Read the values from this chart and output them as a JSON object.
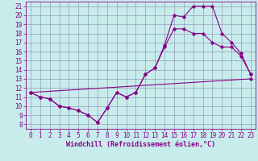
{
  "background_color": "#c8ecec",
  "line_color": "#880088",
  "marker": "D",
  "marker_size": 1.8,
  "linewidth": 0.8,
  "xlabel": "Windchill (Refroidissement éolien,°C)",
  "xlabel_fontsize": 6,
  "tick_fontsize": 5.5,
  "xlim": [
    -0.5,
    23.5
  ],
  "ylim": [
    7.5,
    21.5
  ],
  "xticks": [
    0,
    1,
    2,
    3,
    4,
    5,
    6,
    7,
    8,
    9,
    10,
    11,
    12,
    13,
    14,
    15,
    16,
    17,
    18,
    19,
    20,
    21,
    22,
    23
  ],
  "yticks": [
    8,
    9,
    10,
    11,
    12,
    13,
    14,
    15,
    16,
    17,
    18,
    19,
    20,
    21
  ],
  "grid_color": "#8888aa",
  "series": [
    {
      "x": [
        0,
        1,
        2,
        3,
        4,
        5,
        6,
        7,
        8,
        9,
        10,
        11,
        12,
        13,
        14,
        15,
        16,
        17,
        18,
        19,
        20,
        21,
        22,
        23
      ],
      "y": [
        11.5,
        11.0,
        10.8,
        10.0,
        9.8,
        9.5,
        9.0,
        8.2,
        9.8,
        11.5,
        11.0,
        11.5,
        13.5,
        14.2,
        16.7,
        20.0,
        19.8,
        21.0,
        21.0,
        21.0,
        18.0,
        17.0,
        15.8,
        13.5
      ]
    },
    {
      "x": [
        0,
        1,
        2,
        3,
        4,
        5,
        6,
        7,
        8,
        9,
        10,
        11,
        12,
        13,
        14,
        15,
        16,
        17,
        18,
        19,
        20,
        21,
        22,
        23
      ],
      "y": [
        11.5,
        11.0,
        10.8,
        10.0,
        9.8,
        9.5,
        9.0,
        8.2,
        9.8,
        11.5,
        11.0,
        11.5,
        13.5,
        14.2,
        16.5,
        18.5,
        18.5,
        18.0,
        18.0,
        17.0,
        16.5,
        16.5,
        15.5,
        13.5
      ]
    },
    {
      "x": [
        0,
        23
      ],
      "y": [
        11.5,
        13.0
      ]
    }
  ]
}
